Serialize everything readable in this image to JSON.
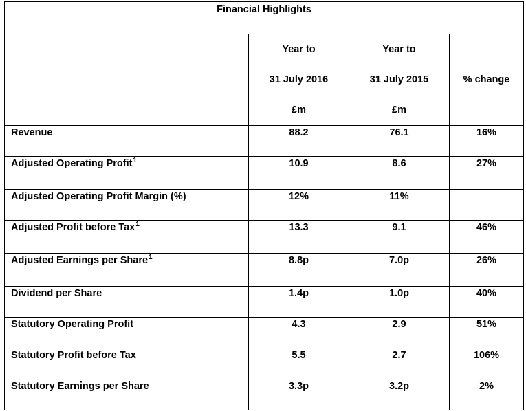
{
  "title": "Financial Highlights",
  "header": {
    "col1": {
      "line1": "Year to",
      "line2": "31 July 2016",
      "line3": "£m"
    },
    "col2": {
      "line1": "Year to",
      "line2": "31 July 2015",
      "line3": "£m"
    },
    "col3": "% change"
  },
  "rows": [
    {
      "label": "Revenue",
      "sup": "",
      "v2016": "88.2",
      "v2015": "76.1",
      "change": "16%"
    },
    {
      "label": "Adjusted Operating Profit",
      "sup": "1",
      "v2016": "10.9",
      "v2015": "8.6",
      "change": "27%"
    },
    {
      "label": "Adjusted Operating Profit Margin (%)",
      "sup": "",
      "v2016": "12%",
      "v2015": "11%",
      "change": ""
    },
    {
      "label": "Adjusted Profit before Tax",
      "sup": "1",
      "v2016": "13.3",
      "v2015": "9.1",
      "change": "46%"
    },
    {
      "label": "Adjusted Earnings per Share",
      "sup": "1",
      "v2016": "8.8p",
      "v2015": "7.0p",
      "change": "26%"
    },
    {
      "label": "Dividend per Share",
      "sup": "",
      "v2016": "1.4p",
      "v2015": "1.0p",
      "change": "40%"
    },
    {
      "label": "Statutory Operating Profit",
      "sup": "",
      "v2016": "4.3",
      "v2015": "2.9",
      "change": "51%"
    },
    {
      "label": "Statutory Profit before Tax",
      "sup": "",
      "v2016": "5.5",
      "v2015": "2.7",
      "change": "106%"
    },
    {
      "label": "Statutory Earnings per Share",
      "sup": "",
      "v2016": "3.3p",
      "v2015": "3.2p",
      "change": "2%"
    }
  ]
}
